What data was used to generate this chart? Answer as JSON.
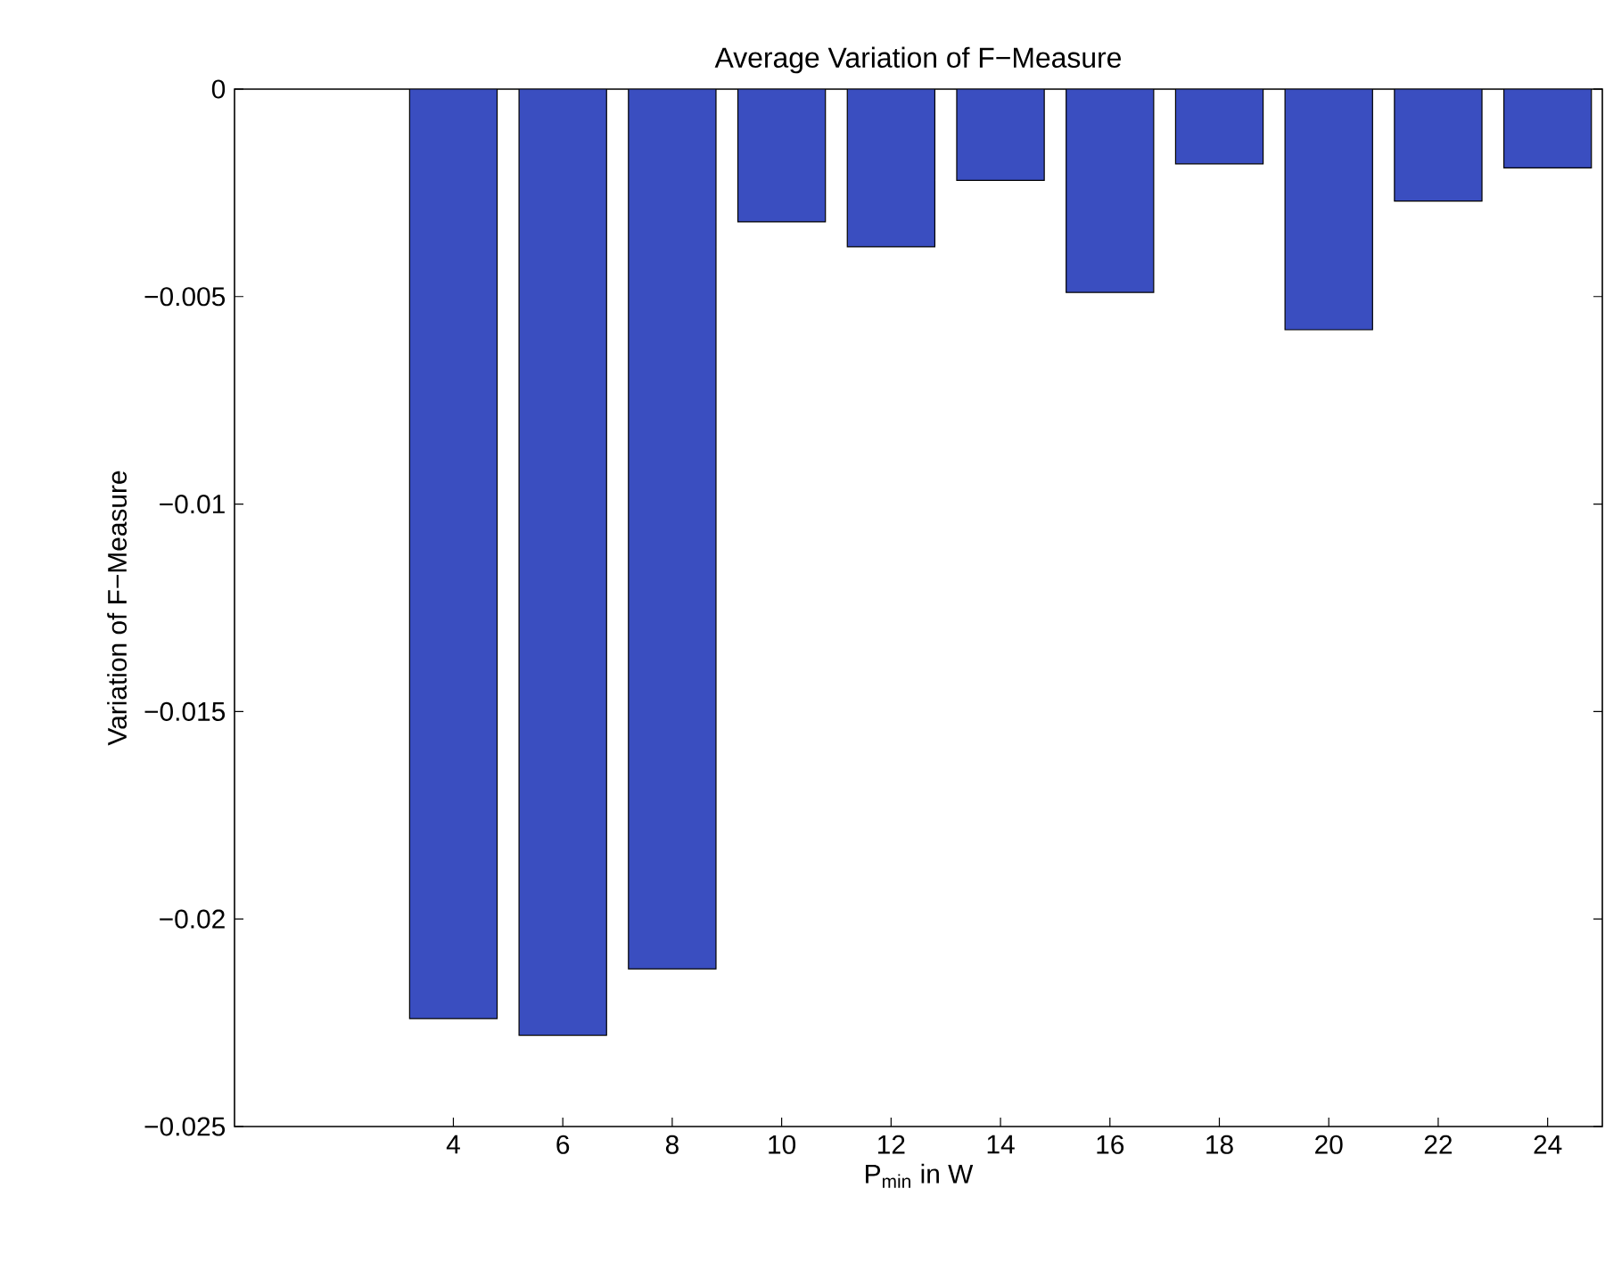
{
  "chart_data": {
    "type": "bar",
    "title": "Average Variation of F−Measure",
    "xlabel": "P$_{min}$ in W",
    "ylabel": "Variation of F−Measure",
    "x": [
      4,
      6,
      8,
      10,
      12,
      14,
      16,
      18,
      20,
      22,
      24
    ],
    "values": [
      -0.0224,
      -0.0228,
      -0.0212,
      -0.0032,
      -0.0038,
      -0.0022,
      -0.0049,
      -0.0018,
      -0.0058,
      -0.0027,
      -0.0019
    ],
    "color": "#3a4ec0",
    "xlim": [
      0,
      25
    ],
    "xticks": [
      4,
      6,
      8,
      10,
      12,
      14,
      16,
      18,
      20,
      22,
      24
    ],
    "ylim": [
      -0.025,
      0
    ],
    "yticks": [
      {
        "value": -0.025,
        "label": "−0.025"
      },
      {
        "value": -0.02,
        "label": "−0.02"
      },
      {
        "value": -0.015,
        "label": "−0.015"
      },
      {
        "value": -0.01,
        "label": "−0.01"
      },
      {
        "value": -0.005,
        "label": "−0.005"
      },
      {
        "value": 0,
        "label": "0"
      }
    ],
    "grid": false
  }
}
